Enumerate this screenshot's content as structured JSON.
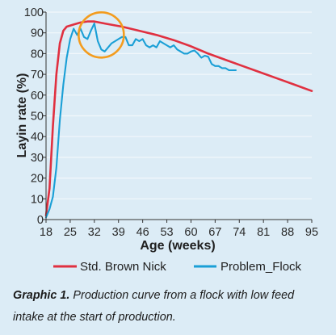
{
  "chart_data": {
    "type": "line",
    "xlabel": "Age (weeks)",
    "ylabel": "Layin rate (%)",
    "x_ticks": [
      18,
      25,
      32,
      39,
      46,
      53,
      60,
      67,
      74,
      81,
      88,
      95
    ],
    "y_ticks": [
      0,
      10,
      20,
      30,
      40,
      50,
      60,
      70,
      80,
      90,
      100
    ],
    "xlim": [
      18,
      95
    ],
    "ylim": [
      0,
      100
    ],
    "grid": true,
    "legend_position": "bottom",
    "highlight_circle": {
      "x": 34,
      "y": 89
    },
    "series": [
      {
        "name": "Std. Brown Nick",
        "color": "#e03040",
        "points": [
          [
            18,
            2
          ],
          [
            19,
            15
          ],
          [
            20,
            45
          ],
          [
            21,
            70
          ],
          [
            22,
            85
          ],
          [
            23,
            91
          ],
          [
            24,
            93
          ],
          [
            26,
            94
          ],
          [
            28,
            95
          ],
          [
            30,
            95.5
          ],
          [
            32,
            95.5
          ],
          [
            35,
            94.5
          ],
          [
            40,
            93
          ],
          [
            45,
            91
          ],
          [
            50,
            89
          ],
          [
            55,
            86.5
          ],
          [
            60,
            83.5
          ],
          [
            65,
            80
          ],
          [
            70,
            77
          ],
          [
            75,
            74
          ],
          [
            80,
            71
          ],
          [
            85,
            68
          ],
          [
            90,
            65
          ],
          [
            95,
            62
          ]
        ]
      },
      {
        "name": "Problem_Flock",
        "color": "#1a9fd6",
        "points": [
          [
            18,
            1
          ],
          [
            19,
            5
          ],
          [
            20,
            11
          ],
          [
            21,
            25
          ],
          [
            22,
            48
          ],
          [
            23,
            65
          ],
          [
            24,
            78
          ],
          [
            25,
            87
          ],
          [
            26,
            92
          ],
          [
            27,
            89
          ],
          [
            28,
            92
          ],
          [
            29,
            88
          ],
          [
            30,
            87
          ],
          [
            31,
            91
          ],
          [
            32,
            94.5
          ],
          [
            33,
            86
          ],
          [
            34,
            82
          ],
          [
            35,
            81
          ],
          [
            36,
            83
          ],
          [
            37,
            85
          ],
          [
            38,
            86
          ],
          [
            39,
            87
          ],
          [
            40,
            88
          ],
          [
            41,
            88
          ],
          [
            42,
            84
          ],
          [
            43,
            84
          ],
          [
            44,
            87
          ],
          [
            45,
            86
          ],
          [
            46,
            87
          ],
          [
            47,
            84
          ],
          [
            48,
            83
          ],
          [
            49,
            84
          ],
          [
            50,
            83
          ],
          [
            51,
            86
          ],
          [
            52,
            85
          ],
          [
            53,
            84
          ],
          [
            54,
            83
          ],
          [
            55,
            84
          ],
          [
            56,
            82
          ],
          [
            57,
            81
          ],
          [
            58,
            80
          ],
          [
            59,
            80
          ],
          [
            60,
            81
          ],
          [
            61,
            81.5
          ],
          [
            62,
            80
          ],
          [
            63,
            78
          ],
          [
            64,
            79
          ],
          [
            65,
            78.5
          ],
          [
            66,
            75
          ],
          [
            67,
            74
          ],
          [
            68,
            74
          ],
          [
            69,
            73
          ],
          [
            70,
            73
          ],
          [
            71,
            72
          ],
          [
            72,
            72
          ],
          [
            73,
            72
          ]
        ]
      }
    ]
  },
  "caption": {
    "label": "Graphic 1.",
    "text": "Production curve from a flock with low feed intake at the start of production."
  }
}
